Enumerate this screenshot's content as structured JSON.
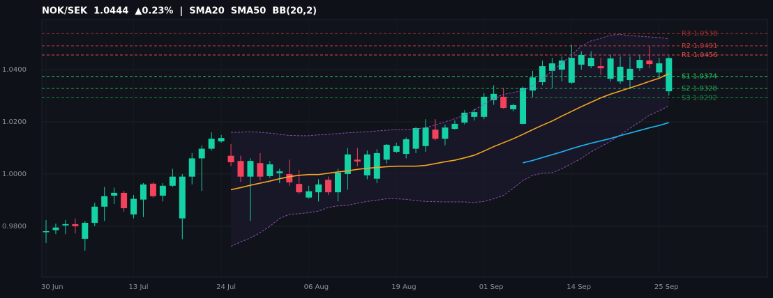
{
  "chart_data": {
    "type": "candlestick",
    "title": "NOK/SEK  1.0444  ▲0.23%  |  SMA20  SMA50  BB(20,2)",
    "categories": [
      "30 Jun",
      null,
      null,
      null,
      null,
      null,
      null,
      null,
      null,
      "13 Jul",
      null,
      null,
      null,
      null,
      null,
      null,
      null,
      null,
      "24 Jul",
      null,
      null,
      null,
      null,
      null,
      null,
      null,
      null,
      "06 Aug",
      null,
      null,
      null,
      null,
      null,
      null,
      null,
      null,
      "19 Aug",
      null,
      null,
      null,
      null,
      null,
      null,
      null,
      null,
      "01 Sep",
      null,
      null,
      null,
      null,
      null,
      null,
      null,
      null,
      "14 Sep",
      null,
      null,
      null,
      null,
      null,
      null,
      null,
      null,
      "25 Sep",
      null
    ],
    "open": [
      0.9778,
      0.9785,
      0.9803,
      0.9808,
      0.9752,
      0.9813,
      0.9875,
      0.9917,
      0.9928,
      0.9845,
      0.9902,
      0.9963,
      0.9917,
      0.9955,
      0.983,
      0.999,
      1.006,
      1.0097,
      1.0125,
      1.007,
      1.005,
      0.999,
      1.0042,
      0.9992,
      1.0003,
      1.0,
      0.9962,
      0.991,
      0.993,
      0.9978,
      0.993,
      1.0,
      1.0055,
      0.9995,
      0.9982,
      1.0055,
      1.0085,
      1.0077,
      1.0097,
      1.0107,
      1.017,
      1.0135,
      1.0173,
      1.0197,
      1.0219,
      1.0219,
      1.0283,
      1.0296,
      1.0248,
      1.0192,
      1.032,
      1.0352,
      1.0395,
      1.04,
      1.035,
      1.0419,
      1.0413,
      1.0413,
      1.0365,
      1.0355,
      1.036,
      1.0405,
      1.0435,
      1.0389,
      1.0317
    ],
    "high": [
      0.9824,
      0.981,
      0.9824,
      0.983,
      0.982,
      0.989,
      0.995,
      0.9948,
      0.9935,
      0.992,
      0.9965,
      0.9968,
      0.9965,
      1.002,
      1.0,
      1.008,
      1.011,
      1.016,
      1.015,
      1.0115,
      1.007,
      1.006,
      1.008,
      1.005,
      1.002,
      1.0055,
      1.0015,
      0.9955,
      0.998,
      0.999,
      1.002,
      1.01,
      1.01,
      1.009,
      1.0095,
      1.0115,
      1.012,
      1.014,
      1.018,
      1.021,
      1.021,
      1.019,
      1.0205,
      1.0245,
      1.025,
      1.031,
      1.034,
      1.033,
      1.027,
      1.0335,
      1.0395,
      1.0435,
      1.0445,
      1.045,
      1.0495,
      1.047,
      1.047,
      1.0445,
      1.0455,
      1.045,
      1.045,
      1.0455,
      1.049,
      1.0445,
      1.045
    ],
    "low": [
      0.9736,
      0.977,
      0.977,
      0.9772,
      0.9706,
      0.98,
      0.982,
      0.9885,
      0.9855,
      0.983,
      0.9835,
      0.991,
      0.9895,
      0.995,
      0.975,
      0.996,
      0.9935,
      1.009,
      1.012,
      1.003,
      0.997,
      0.982,
      0.9975,
      0.9985,
      0.9965,
      0.9955,
      0.9925,
      0.9905,
      0.9895,
      0.992,
      0.9895,
      0.994,
      1.003,
      0.998,
      0.9965,
      1.004,
      1.008,
      1.006,
      1.008,
      1.0085,
      1.013,
      1.011,
      1.017,
      1.019,
      1.0205,
      1.021,
      1.0265,
      1.025,
      1.024,
      1.019,
      1.0295,
      1.034,
      1.033,
      1.0355,
      1.0345,
      1.04,
      1.0405,
      1.038,
      1.0355,
      1.0345,
      1.0325,
      1.0395,
      1.0405,
      1.037,
      1.03
    ],
    "close": [
      0.9781,
      0.9795,
      0.9808,
      0.98,
      0.9813,
      0.9875,
      0.9915,
      0.9928,
      0.9869,
      0.9905,
      0.996,
      0.9915,
      0.9955,
      0.999,
      0.999,
      1.006,
      1.0097,
      1.0135,
      1.0138,
      1.0045,
      0.999,
      1.005,
      0.999,
      1.0037,
      1.001,
      0.9968,
      0.993,
      0.9934,
      0.996,
      0.993,
      1.0005,
      1.0075,
      1.0048,
      1.0075,
      1.008,
      1.0112,
      1.0107,
      1.0133,
      1.0176,
      1.0178,
      1.0135,
      1.0178,
      1.0192,
      1.0235,
      1.0237,
      1.0296,
      1.0307,
      1.0253,
      1.0264,
      1.033,
      1.037,
      1.0413,
      1.0424,
      1.0435,
      1.0445,
      1.0456,
      1.0445,
      1.0405,
      1.0443,
      1.0411,
      1.0403,
      1.0437,
      1.0421,
      1.0424,
      1.0444
    ],
    "up_color": "#14d1a6",
    "down_color": "#f2425c",
    "overlays": [
      {
        "style": "dashed",
        "color": "#8e4fb0",
        "values": [
          null,
          null,
          null,
          null,
          null,
          null,
          null,
          null,
          null,
          null,
          null,
          null,
          null,
          null,
          null,
          null,
          null,
          null,
          null,
          1.016,
          1.016,
          1.0162,
          1.016,
          1.0157,
          1.0152,
          1.0148,
          1.0147,
          1.0147,
          1.015,
          1.0152,
          1.0155,
          1.0158,
          1.016,
          1.0162,
          1.0165,
          1.0168,
          1.017,
          1.017,
          1.0172,
          1.0178,
          1.0188,
          1.02,
          1.0212,
          1.0225,
          1.0245,
          1.0268,
          1.029,
          1.0305,
          1.0312,
          1.032,
          1.0338,
          1.0365,
          1.0395,
          1.0425,
          1.0455,
          1.049,
          1.051,
          1.052,
          1.0532,
          1.0535,
          1.053,
          1.0528,
          1.0525,
          1.0523,
          1.0518
        ]
      },
      {
        "style": "dashed",
        "color": "#8e4fb0",
        "values": [
          null,
          null,
          null,
          null,
          null,
          null,
          null,
          null,
          null,
          null,
          null,
          null,
          null,
          null,
          null,
          null,
          null,
          null,
          null,
          0.9723,
          0.974,
          0.9755,
          0.9775,
          0.98,
          0.983,
          0.9845,
          0.9848,
          0.9852,
          0.9858,
          0.9872,
          0.9878,
          0.988,
          0.9888,
          0.9895,
          0.99,
          0.9905,
          0.9905,
          0.9903,
          0.9898,
          0.9895,
          0.9894,
          0.9893,
          0.9893,
          0.9893,
          0.9891,
          0.9895,
          0.9905,
          0.9918,
          0.9945,
          0.9975,
          0.9995,
          1.0003,
          1.0005,
          1.002,
          1.004,
          1.006,
          1.0085,
          1.0105,
          1.0125,
          1.015,
          1.0175,
          1.02,
          1.0225,
          1.0242,
          1.0261
        ]
      },
      {
        "style": "solid",
        "color": "#f5a623",
        "values": [
          null,
          null,
          null,
          null,
          null,
          null,
          null,
          null,
          null,
          null,
          null,
          null,
          null,
          null,
          null,
          null,
          null,
          null,
          null,
          0.994,
          0.9948,
          0.9957,
          0.9965,
          0.9973,
          0.9982,
          0.999,
          0.9995,
          0.9998,
          0.9998,
          1.0003,
          1.0008,
          1.0012,
          1.0018,
          1.0022,
          1.0025,
          1.0028,
          1.003,
          1.003,
          1.003,
          1.0033,
          1.004,
          1.0047,
          1.0053,
          1.0062,
          1.0072,
          1.0088,
          1.0105,
          1.012,
          1.0135,
          1.0152,
          1.017,
          1.0187,
          1.0203,
          1.0222,
          1.024,
          1.0258,
          1.0275,
          1.0292,
          1.0306,
          1.0318,
          1.033,
          1.0342,
          1.0355,
          1.0367,
          1.0385
        ]
      },
      {
        "style": "solid",
        "color": "#1fb2f0",
        "values": [
          null,
          null,
          null,
          null,
          null,
          null,
          null,
          null,
          null,
          null,
          null,
          null,
          null,
          null,
          null,
          null,
          null,
          null,
          null,
          null,
          null,
          null,
          null,
          null,
          null,
          null,
          null,
          null,
          null,
          null,
          null,
          null,
          null,
          null,
          null,
          null,
          null,
          null,
          null,
          null,
          null,
          null,
          null,
          null,
          null,
          null,
          null,
          null,
          null,
          1.0043,
          1.0052,
          1.0063,
          1.0074,
          1.0085,
          1.0097,
          1.0108,
          1.0118,
          1.0127,
          1.0136,
          1.0147,
          1.0157,
          1.0167,
          1.0177,
          1.0186,
          1.0197
        ]
      }
    ],
    "band_fill": "#1d1a2e",
    "levels": [
      {
        "value": 1.0538,
        "label": "R3 1.0538",
        "color": "#a8302f"
      },
      {
        "value": 1.0491,
        "label": "R2 1.0491",
        "color": "#c23a3a"
      },
      {
        "value": 1.0456,
        "label": "R1 1.0456",
        "color": "#e04a4a"
      },
      {
        "value": 1.0374,
        "label": "S1 1.0374",
        "color": "#22c55e"
      },
      {
        "value": 1.0328,
        "label": "S2 1.0328",
        "color": "#1fae50"
      },
      {
        "value": 1.0292,
        "label": "S3 1.0292",
        "color": "#178a40"
      }
    ],
    "ylim": [
      0.9605,
      1.0592
    ],
    "yticks": [
      {
        "value": 0.98,
        "label": "0.9800"
      },
      {
        "value": 1.0,
        "label": "1.0000"
      },
      {
        "value": 1.02,
        "label": "1.0200"
      },
      {
        "value": 1.04,
        "label": "1.0400"
      }
    ],
    "grid": true
  }
}
